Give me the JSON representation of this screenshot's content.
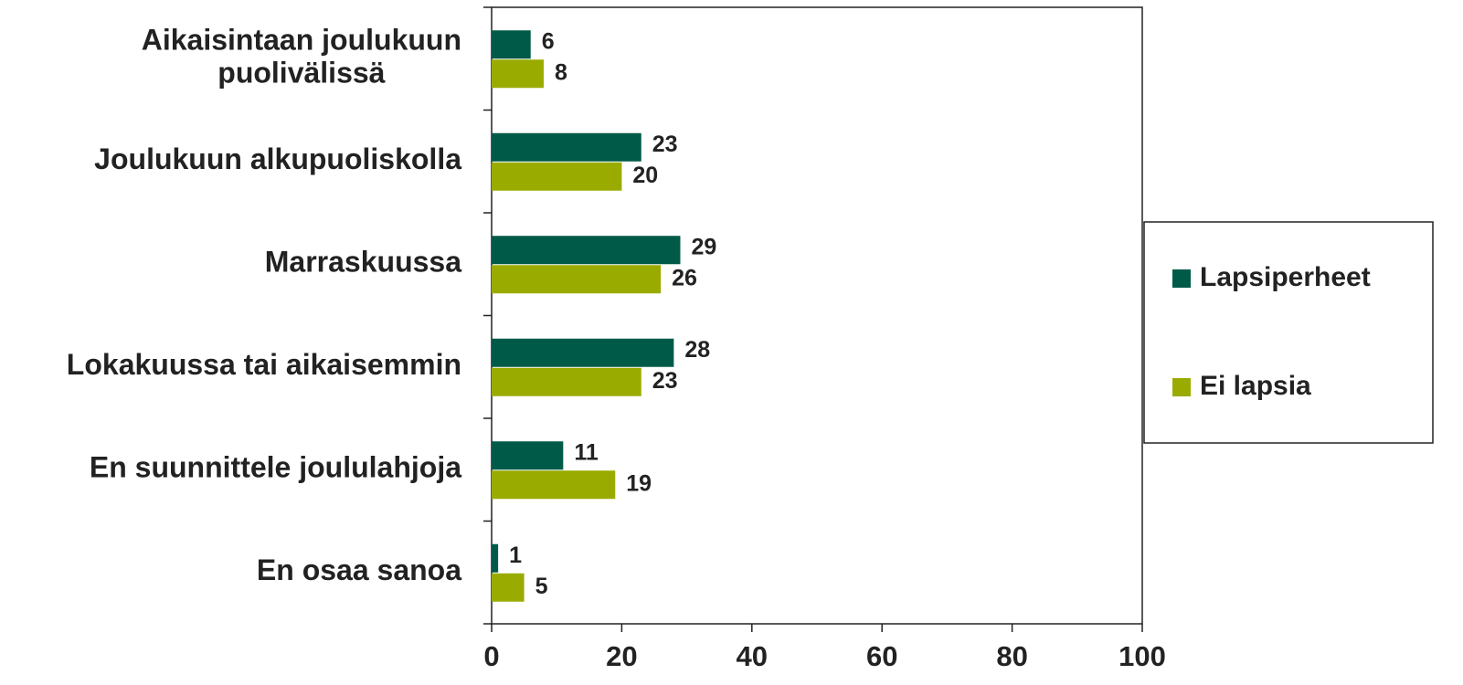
{
  "chart_data": {
    "type": "bar",
    "orientation": "horizontal",
    "categories": [
      "Aikaisintaan joulukuun puolivälissä",
      "Joulukuun alkupuoliskolla",
      "Marraskuussa",
      "Lokakuussa tai aikaisemmin",
      "En suunnittele joululahjoja",
      "En osaa sanoa"
    ],
    "series": [
      {
        "name": "Lapsiperheet",
        "color": "#005a48",
        "values": [
          6,
          23,
          29,
          28,
          11,
          1
        ]
      },
      {
        "name": "Ei lapsia",
        "color": "#9aab00",
        "values": [
          8,
          20,
          26,
          23,
          19,
          5
        ]
      }
    ],
    "xlim": [
      0,
      100
    ],
    "xticks": [
      0,
      20,
      40,
      60,
      80,
      100
    ],
    "grid": false,
    "legend": "right"
  }
}
